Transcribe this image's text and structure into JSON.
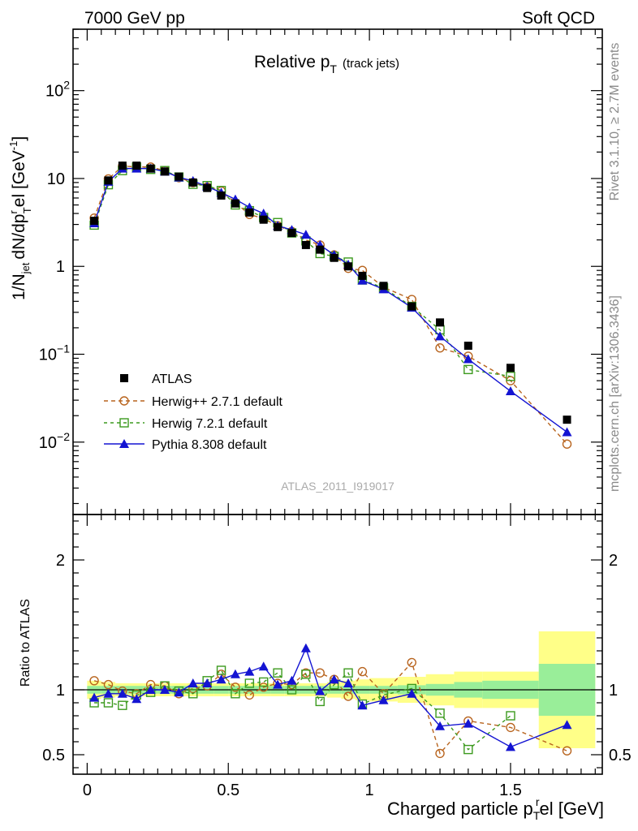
{
  "header": {
    "left_label": "7000 GeV pp",
    "right_label": "Soft QCD"
  },
  "side_labels": {
    "rivet": "Rivet 3.1.10, ≥ 2.7M events",
    "mcplots": "mcplots.cern.ch [arXiv:1306.3436]"
  },
  "chart_data": [
    {
      "type": "scatter",
      "panel": "main",
      "title": "Relative p",
      "title_sub": "T",
      "title_suffix": "(track jets)",
      "ylabel": "1/N",
      "ylabel_sub": "jet",
      "ylabel_mid": "dN/dp",
      "ylabel_sup": "r",
      "ylabel_sub2": "T",
      "ylabel_end": "el [GeV",
      "ylabel_exp": "-1",
      "ylabel_close": "]",
      "yscale": "log",
      "xlim": [
        -0.05,
        1.825
      ],
      "ylim": [
        0.0015,
        500
      ],
      "watermark": "ATLAS_2011_I919017",
      "y_ticks": [
        {
          "value": 0.01,
          "base": "10",
          "exp": "−2"
        },
        {
          "value": 0.1,
          "base": "10",
          "exp": "−1"
        },
        {
          "value": 1,
          "base": "1",
          "exp": ""
        },
        {
          "value": 10,
          "base": "10",
          "exp": ""
        },
        {
          "value": 100,
          "base": "10",
          "exp": "2"
        }
      ],
      "x": [
        0.025,
        0.075,
        0.125,
        0.175,
        0.225,
        0.275,
        0.325,
        0.375,
        0.425,
        0.475,
        0.525,
        0.575,
        0.625,
        0.675,
        0.725,
        0.775,
        0.825,
        0.875,
        0.925,
        0.975,
        1.05,
        1.15,
        1.25,
        1.35,
        1.5,
        1.7
      ],
      "series": [
        {
          "name": "ATLAS",
          "color": "#000000",
          "marker": "square",
          "values": [
            3.3,
            9.5,
            14.0,
            14.0,
            13.0,
            12.0,
            10.5,
            9.0,
            7.8,
            6.4,
            5.2,
            4.1,
            3.4,
            2.8,
            2.4,
            1.75,
            1.55,
            1.25,
            1.0,
            0.78,
            0.6,
            0.35,
            0.23,
            0.125,
            0.07,
            0.018
          ]
        },
        {
          "name": "Herwig++ 2.7.1 default",
          "color": "#b8641e",
          "marker": "circle",
          "values": [
            3.55,
            9.9,
            13.8,
            13.6,
            13.5,
            12.3,
            10.2,
            9.0,
            8.0,
            7.2,
            5.3,
            3.9,
            3.5,
            2.9,
            2.5,
            2.0,
            1.75,
            1.35,
            0.95,
            0.9,
            0.58,
            0.42,
            0.118,
            0.095,
            0.05,
            0.0095
          ]
        },
        {
          "name": "Herwig 7.2.1 default",
          "color": "#3c9a1e",
          "marker": "open-square",
          "values": [
            2.95,
            8.5,
            12.3,
            13.5,
            12.7,
            12.3,
            10.4,
            8.6,
            8.3,
            7.3,
            5.0,
            4.3,
            3.6,
            3.15,
            2.4,
            1.95,
            1.4,
            1.3,
            1.12,
            0.7,
            0.57,
            0.35,
            0.19,
            0.067,
            0.056
          ]
        },
        {
          "name": "Pythia 8.308 default",
          "color": "#1414d2",
          "marker": "triangle",
          "values": [
            3.1,
            9.2,
            13.0,
            13.0,
            13.0,
            12.0,
            10.3,
            9.4,
            8.1,
            6.9,
            5.8,
            4.7,
            4.0,
            2.9,
            2.6,
            2.3,
            1.75,
            1.35,
            1.05,
            0.69,
            0.55,
            0.34,
            0.16,
            0.088,
            0.038,
            0.013
          ]
        }
      ]
    },
    {
      "type": "scatter",
      "panel": "ratio",
      "ylabel": "Ratio to ATLAS",
      "xlabel": "Charged particle p",
      "xlabel_sub": "T",
      "xlabel_sup": "r",
      "xlabel_end": "el [GeV]",
      "xlim": [
        -0.05,
        1.825
      ],
      "ylim": [
        0.35,
        2.35
      ],
      "x_ticks": [
        {
          "value": 0,
          "label": "0"
        },
        {
          "value": 0.5,
          "label": "0.5"
        },
        {
          "value": 1,
          "label": "1"
        },
        {
          "value": 1.5,
          "label": "1.5"
        }
      ],
      "y_ticks": [
        {
          "value": 0.5,
          "label": "0.5"
        },
        {
          "value": 1,
          "label": "1"
        },
        {
          "value": 2,
          "label": "2"
        }
      ],
      "band_colors": {
        "stat": "#99ee99",
        "total": "#ffff88"
      },
      "band_edges": [
        0,
        0.05,
        0.1,
        0.15,
        0.2,
        0.25,
        0.3,
        0.35,
        0.4,
        0.45,
        0.5,
        0.55,
        0.6,
        0.65,
        0.7,
        0.75,
        0.8,
        0.85,
        0.9,
        0.95,
        1.0,
        1.1,
        1.2,
        1.3,
        1.4,
        1.6,
        1.8
      ],
      "band_stat": [
        0.03,
        0.03,
        0.03,
        0.03,
        0.03,
        0.03,
        0.03,
        0.03,
        0.03,
        0.03,
        0.03,
        0.03,
        0.03,
        0.03,
        0.03,
        0.03,
        0.03,
        0.03,
        0.03,
        0.03,
        0.03,
        0.035,
        0.045,
        0.06,
        0.07,
        0.2
      ],
      "band_total": [
        0.07,
        0.06,
        0.05,
        0.05,
        0.05,
        0.05,
        0.05,
        0.05,
        0.05,
        0.05,
        0.05,
        0.05,
        0.05,
        0.05,
        0.05,
        0.05,
        0.05,
        0.06,
        0.07,
        0.08,
        0.09,
        0.1,
        0.12,
        0.14,
        0.14,
        0.45
      ],
      "series": [
        {
          "name": "Herwig++ 2.7.1 default",
          "color": "#b8641e",
          "marker": "circle",
          "values": [
            1.07,
            1.04,
            0.99,
            0.97,
            1.04,
            1.03,
            0.97,
            1.01,
            1.03,
            1.12,
            1.02,
            0.96,
            1.02,
            1.05,
            1.04,
            1.13,
            1.13,
            1.08,
            0.95,
            1.14,
            0.97,
            1.21,
            0.51,
            0.76,
            0.71,
            0.53
          ]
        },
        {
          "name": "Herwig 7.2.1 default",
          "color": "#3c9a1e",
          "marker": "open-square",
          "values": [
            0.9,
            0.9,
            0.88,
            0.96,
            0.98,
            1.03,
            0.99,
            0.97,
            1.07,
            1.15,
            0.97,
            1.05,
            1.06,
            1.13,
            1.0,
            1.12,
            0.91,
            1.04,
            1.13,
            0.89,
            0.96,
            1.01,
            0.82,
            0.54,
            0.8
          ]
        },
        {
          "name": "Pythia 8.308 default",
          "color": "#1414d2",
          "marker": "triangle",
          "values": [
            0.94,
            0.97,
            0.97,
            0.93,
            1.0,
            1.0,
            0.98,
            1.05,
            1.05,
            1.08,
            1.12,
            1.14,
            1.18,
            1.04,
            1.07,
            1.32,
            0.99,
            1.08,
            1.05,
            0.88,
            0.92,
            0.97,
            0.72,
            0.74,
            0.56,
            0.73
          ]
        }
      ]
    }
  ]
}
